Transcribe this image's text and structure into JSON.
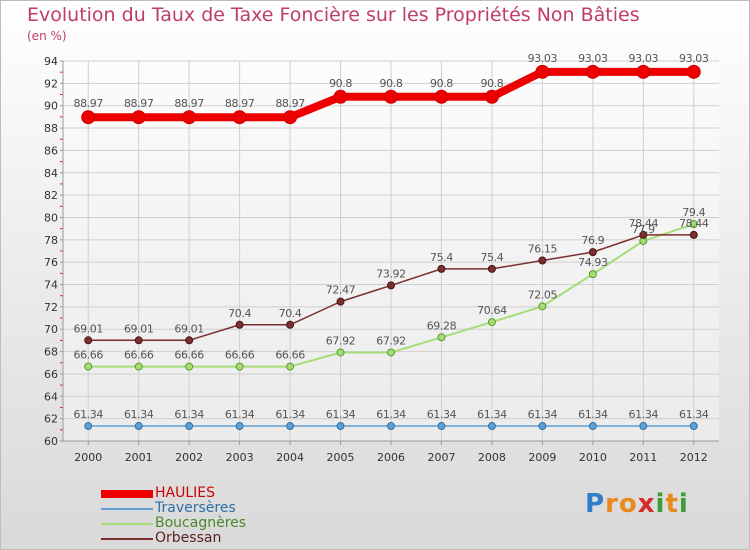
{
  "chart_data": {
    "type": "line",
    "title": "Evolution du Taux de Taxe Foncière sur les Propriétés Non Bâties",
    "subtitle": "(en %)",
    "xlabel": "",
    "ylabel": "",
    "x": [
      "2000",
      "2001",
      "2002",
      "2003",
      "2004",
      "2005",
      "2006",
      "2007",
      "2008",
      "2009",
      "2010",
      "2011",
      "2012"
    ],
    "ylim": [
      60,
      94
    ],
    "yticks": [
      "60",
      "62",
      "64",
      "66",
      "68",
      "70",
      "72",
      "74",
      "76",
      "78",
      "80",
      "82",
      "84",
      "86",
      "88",
      "90",
      "92",
      "94"
    ],
    "grid": true,
    "legend_position": "bottom-left",
    "series": [
      {
        "name": "HAULIES",
        "color": "#ee0000",
        "values": [
          88.97,
          88.97,
          88.97,
          88.97,
          88.97,
          90.8,
          90.8,
          90.8,
          90.8,
          93.03,
          93.03,
          93.03,
          93.03
        ],
        "labels": [
          "88.97",
          "88.97",
          "88.97",
          "88.97",
          "88.97",
          "90.8",
          "90.8",
          "90.8",
          "90.8",
          "93.03",
          "93.03",
          "93.03",
          "93.03"
        ]
      },
      {
        "name": "Traversères",
        "color": "#5f9fd4",
        "values": [
          61.34,
          61.34,
          61.34,
          61.34,
          61.34,
          61.34,
          61.34,
          61.34,
          61.34,
          61.34,
          61.34,
          61.34,
          61.34
        ],
        "labels": [
          "61.34",
          "61.34",
          "61.34",
          "61.34",
          "61.34",
          "61.34",
          "61.34",
          "61.34",
          "61.34",
          "61.34",
          "61.34",
          "61.34",
          "61.34"
        ]
      },
      {
        "name": "Boucagnères",
        "color": "#a6dd78",
        "values": [
          66.66,
          66.66,
          66.66,
          66.66,
          66.66,
          67.92,
          67.92,
          69.28,
          70.64,
          72.05,
          74.93,
          77.9,
          79.4
        ],
        "labels": [
          "66.66",
          "66.66",
          "66.66",
          "66.66",
          "66.66",
          "67.92",
          "67.92",
          "69.28",
          "70.64",
          "72.05",
          "74.93",
          "77.9",
          "79.4"
        ]
      },
      {
        "name": "Orbessan",
        "color": "#7b2f2f",
        "values": [
          69.01,
          69.01,
          69.01,
          70.4,
          70.4,
          72.47,
          73.92,
          75.4,
          75.4,
          76.15,
          76.9,
          78.44,
          78.44
        ],
        "labels": [
          "69.01",
          "69.01",
          "69.01",
          "70.4",
          "70.4",
          "72.47",
          "73.92",
          "75.4",
          "75.4",
          "76.15",
          "76.9",
          "78.44",
          "78.44"
        ]
      }
    ]
  },
  "logo": {
    "letters": [
      "P",
      "r",
      "o",
      "x",
      "i",
      "t",
      "i"
    ],
    "colors": [
      "#2f7fc8",
      "#e88a1c",
      "#e88a1c",
      "#d42b2b",
      "#3e9b3a",
      "#e88a1c",
      "#3e9b3a"
    ]
  }
}
